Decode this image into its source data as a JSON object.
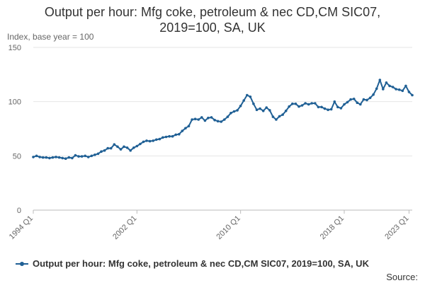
{
  "title_line1": "Output per hour: Mfg coke, petroleum & nec CD,CM SIC07,",
  "title_line2": "2019=100, SA, UK",
  "source_label": "Source:",
  "colors": {
    "series": "#206095",
    "grid": "#e6e6e6",
    "axis": "#bbbbbb",
    "text": "#333333",
    "tick_text": "#666666"
  },
  "chart_data": {
    "type": "line",
    "title": "Output per hour: Mfg coke, petroleum & nec CD,CM SIC07, 2019=100, SA, UK",
    "ylabel": "Index, base year = 100",
    "xlabel": "",
    "ylim": [
      0,
      150
    ],
    "y_ticks": [
      0,
      50,
      100,
      150
    ],
    "x_start": "1994 Q1",
    "x_ticks": [
      "1994 Q1",
      "2002 Q1",
      "2010 Q1",
      "2018 Q1",
      "2023 Q1"
    ],
    "grid": "horizontal",
    "legend_placement": "bottom",
    "series": [
      {
        "name": "Output per hour: Mfg coke, petroleum & nec CD,CM SIC07, 2019=100, SA, UK",
        "values": [
          49,
          50,
          49,
          48.5,
          48.5,
          48,
          48.5,
          49,
          48.5,
          48,
          47.5,
          48.5,
          48,
          50.5,
          49.5,
          49.5,
          50,
          49,
          50,
          51,
          52,
          54,
          55,
          57,
          57,
          60.5,
          58.5,
          56,
          58.5,
          57.5,
          55,
          57.5,
          59,
          61,
          63,
          64,
          63.5,
          64,
          65,
          65.5,
          67,
          67.5,
          68,
          68,
          69.5,
          70,
          73,
          75.5,
          77.5,
          83.5,
          84,
          83.5,
          85.5,
          82.5,
          85,
          85.5,
          83,
          82,
          81.5,
          83.5,
          86,
          89.5,
          91,
          92,
          96,
          101,
          106,
          104.5,
          98,
          92.5,
          93.5,
          91.5,
          94.5,
          92,
          86,
          83.5,
          86.5,
          88,
          91.5,
          95.5,
          98,
          98,
          95.5,
          96.5,
          98.5,
          97.5,
          98.5,
          98.5,
          95,
          95,
          93.5,
          92.5,
          93,
          100,
          95,
          94,
          97.5,
          99.5,
          102,
          102.5,
          99,
          97.5,
          102,
          101.5,
          103.5,
          106.5,
          112,
          120,
          111.5,
          117.5,
          114.5,
          113.5,
          111.5,
          111,
          110,
          114.5,
          109,
          106
        ]
      }
    ]
  }
}
